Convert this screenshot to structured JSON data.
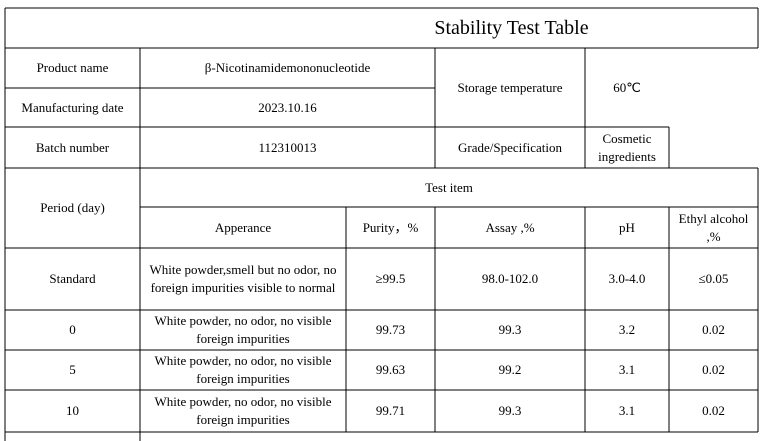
{
  "title": "Stability Test Table",
  "info": [
    {
      "label": "Product name",
      "value": "β-Nicotinamidemononucleotide"
    },
    {
      "label": "Manufacturing date",
      "value": "2023.10.16"
    },
    {
      "label": "Batch number",
      "value": "112310013"
    }
  ],
  "storage": {
    "label": "Storage temperature",
    "value": "60℃"
  },
  "grade": {
    "label": "Grade/Specification",
    "value": "Cosmetic ingredients"
  },
  "table": {
    "period_header": "Period (day)",
    "group_header": "Test item",
    "columns": [
      "Apperance",
      "Purity，%",
      "Assay ,%",
      "pH",
      "Ethyl alcohol ,%"
    ],
    "rows": [
      [
        "Standard",
        "White powder,smell but no odor, no foreign impurities visible to normal",
        "≥99.5",
        "98.0-102.0",
        "3.0-4.0",
        "≤0.05"
      ],
      [
        "0",
        "White powder, no odor, no visible foreign impurities",
        "99.73",
        "99.3",
        "3.2",
        "0.02"
      ],
      [
        "5",
        "White powder, no odor, no visible foreign impurities",
        "99.63",
        "99.2",
        "3.1",
        "0.02"
      ],
      [
        "10",
        "White powder, no odor, no visible foreign impurities",
        "99.71",
        "99.3",
        "3.1",
        "0.02"
      ]
    ]
  }
}
